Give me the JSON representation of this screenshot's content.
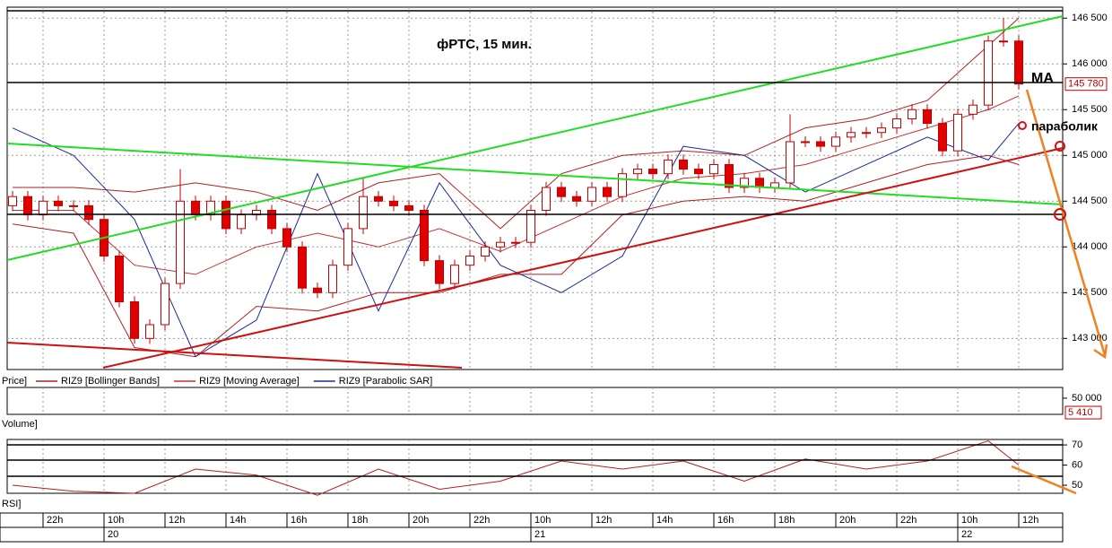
{
  "chart_data": [
    {
      "type": "candlestick",
      "title": "фРТС,  15 мин.",
      "panel_label": "Price]",
      "categories": [
        null,
        null,
        "22h",
        null,
        null,
        null,
        "10h",
        null,
        null,
        null,
        "12h",
        null,
        null,
        null,
        "14h",
        null,
        null,
        null,
        "16h",
        null,
        null,
        null,
        "18h",
        null,
        null,
        null,
        "20h",
        null,
        null,
        null,
        "22h",
        null,
        null,
        null,
        "10h",
        null,
        null,
        null,
        "12h",
        null,
        null,
        null,
        "14h",
        null,
        null,
        null,
        "16h",
        null,
        null,
        null,
        "18h",
        null,
        null,
        null,
        "20h",
        null,
        null,
        null,
        "22h",
        null,
        null,
        null,
        "10h",
        null,
        null,
        null,
        "12h"
      ],
      "days": [
        null,
        null,
        null,
        null,
        null,
        null,
        "20",
        null,
        null,
        null,
        null,
        null,
        null,
        null,
        null,
        null,
        null,
        null,
        null,
        null,
        null,
        null,
        null,
        null,
        null,
        null,
        null,
        null,
        null,
        null,
        null,
        null,
        null,
        null,
        "21",
        null,
        null,
        null,
        null,
        null,
        null,
        null,
        null,
        null,
        null,
        null,
        null,
        null,
        null,
        null,
        null,
        null,
        null,
        null,
        null,
        null,
        null,
        null,
        null,
        null,
        null,
        null,
        "22",
        null,
        null,
        null,
        null
      ],
      "open": [
        144450,
        144550,
        144350,
        144500,
        144450,
        144450,
        144300,
        143900,
        143400,
        143000,
        143150,
        143600,
        144500,
        144350,
        144500,
        144200,
        144350,
        144400,
        144200,
        144000,
        143550,
        143500,
        143800,
        144200,
        144550,
        144500,
        144450,
        144400,
        143850,
        143600,
        143800,
        143900,
        144000,
        144050,
        144050,
        144400,
        144650,
        144550,
        144500,
        144650,
        144550,
        144800,
        144850,
        144800,
        144950,
        144850,
        144800,
        144900,
        144650,
        144750,
        144650,
        144700,
        145150,
        145150,
        145100,
        145200,
        145250,
        145250,
        145300,
        145400,
        145500,
        145350,
        145050,
        145450,
        145550,
        146250,
        146250
      ],
      "high": [
        144610,
        144610,
        144560,
        144560,
        144510,
        144510,
        144360,
        143960,
        143460,
        143210,
        143660,
        144850,
        144560,
        144560,
        144560,
        144410,
        144460,
        144460,
        144260,
        144060,
        143610,
        143860,
        144260,
        144750,
        144610,
        144560,
        144510,
        144460,
        143910,
        143860,
        143960,
        144060,
        144110,
        144110,
        144460,
        144710,
        144710,
        144610,
        144710,
        144710,
        144860,
        144910,
        144910,
        145010,
        145010,
        144910,
        144960,
        144960,
        144810,
        144810,
        144760,
        145450,
        145210,
        145210,
        145260,
        145310,
        145310,
        145360,
        145460,
        145560,
        145560,
        145410,
        145510,
        145610,
        146310,
        146500,
        146310
      ],
      "low": [
        144390,
        144290,
        144290,
        144390,
        144390,
        144240,
        143840,
        143340,
        142940,
        142940,
        143090,
        143540,
        144290,
        144290,
        144140,
        144140,
        144290,
        144140,
        143940,
        143490,
        143440,
        143440,
        143740,
        144140,
        144440,
        144390,
        144340,
        143790,
        143540,
        143540,
        143740,
        143840,
        143940,
        143990,
        143990,
        144340,
        144490,
        144440,
        144440,
        144490,
        144490,
        144740,
        144740,
        144740,
        144790,
        144740,
        144740,
        144590,
        144590,
        144590,
        144590,
        144640,
        145090,
        145040,
        145040,
        145140,
        145190,
        145190,
        145240,
        145340,
        145290,
        144990,
        144990,
        145390,
        145490,
        146190,
        145720
      ],
      "close": [
        144550,
        144350,
        144500,
        144450,
        144450,
        144300,
        143900,
        143400,
        143000,
        143150,
        143600,
        144500,
        144350,
        144500,
        144200,
        144350,
        144400,
        144200,
        144000,
        143550,
        143500,
        143800,
        144200,
        144550,
        144500,
        144450,
        144400,
        143850,
        143600,
        143800,
        143900,
        144000,
        144050,
        144050,
        144400,
        144650,
        144550,
        144500,
        144650,
        144550,
        144800,
        144850,
        144800,
        144950,
        144850,
        144800,
        144900,
        144650,
        144750,
        144650,
        144700,
        145150,
        145150,
        145100,
        145200,
        145250,
        145250,
        145300,
        145400,
        145500,
        145350,
        145050,
        145450,
        145550,
        146250,
        146250,
        145780
      ],
      "up_color": "#ffffff",
      "down_color": "#e00000",
      "edge_color": "#c00000",
      "overlays": [
        {
          "name": "RIZ9 [Bollinger Bands]",
          "color": "#b02020",
          "x": [
            0,
            4,
            8,
            12,
            16,
            20,
            24,
            28,
            32,
            36,
            40,
            44,
            48,
            52,
            56,
            60,
            64,
            66
          ],
          "values": [
            144650,
            144650,
            144600,
            144700,
            144600,
            144400,
            144700,
            144800,
            144200,
            144800,
            145000,
            145050,
            145000,
            145300,
            145400,
            145600,
            146200,
            146500
          ]
        },
        {
          "name": "RIZ9 [Bollinger Bands]",
          "color": "#b02020",
          "x": [
            0,
            4,
            8,
            12,
            16,
            20,
            24,
            28,
            32,
            36,
            40,
            44,
            48,
            52,
            56,
            60,
            64,
            66
          ],
          "values": [
            144250,
            144150,
            142900,
            142800,
            143350,
            143300,
            143500,
            143500,
            143700,
            143700,
            144350,
            144500,
            144550,
            144500,
            144700,
            144900,
            145000,
            144900
          ]
        },
        {
          "name": "RIZ9 [Moving Average]",
          "color": "#c03030",
          "x": [
            0,
            4,
            8,
            12,
            16,
            20,
            24,
            28,
            32,
            36,
            40,
            44,
            48,
            52,
            56,
            60,
            64,
            66
          ],
          "values": [
            144400,
            144400,
            143800,
            143700,
            144000,
            144150,
            144000,
            144200,
            143950,
            144250,
            144550,
            144750,
            144800,
            144900,
            145100,
            145300,
            145500,
            145650
          ]
        },
        {
          "name": "RIZ9 [Parabolic SAR]",
          "color": "#1a2a9a",
          "x": [
            0,
            4,
            8,
            12,
            16,
            20,
            24,
            28,
            32,
            36,
            40,
            44,
            48,
            52,
            56,
            60,
            64,
            66
          ],
          "values": [
            145300,
            145000,
            144300,
            142800,
            143200,
            144800,
            143300,
            144700,
            143800,
            143500,
            143900,
            145100,
            145000,
            144600,
            144900,
            145200,
            144950,
            145350
          ]
        }
      ],
      "annotations": [
        "MA",
        "параболик"
      ],
      "last_price": {
        "value": 145780,
        "label": "145 780"
      },
      "ylim": [
        142660,
        146620
      ],
      "yticks": [
        {
          "value": 143000,
          "label": "143 000"
        },
        {
          "value": 143500,
          "label": "143 500"
        },
        {
          "value": 144000,
          "label": "144 000"
        },
        {
          "value": 144500,
          "label": "144 500"
        },
        {
          "value": 145000,
          "label": "145 000"
        },
        {
          "value": 145500,
          "label": "145 500"
        },
        {
          "value": 146000,
          "label": "146 000"
        },
        {
          "value": 146500,
          "label": "146 500"
        }
      ],
      "grid": true
    },
    {
      "type": "bar",
      "panel_label": "Volume]",
      "ylim": [
        0,
        83000
      ],
      "yticks": [
        {
          "value": 50000,
          "label": "50 000"
        }
      ],
      "last_value": {
        "value": 5410,
        "label": "5 410"
      }
    },
    {
      "type": "line",
      "panel_label": "RSI]",
      "color": "#b02020",
      "x": [
        0,
        4,
        8,
        12,
        16,
        20,
        24,
        28,
        32,
        36,
        40,
        44,
        48,
        52,
        56,
        60,
        64,
        66
      ],
      "values": [
        50,
        47,
        46,
        58,
        55,
        45,
        58,
        48,
        52,
        62,
        58,
        62,
        52,
        63,
        58,
        62,
        72,
        60
      ],
      "ylim": [
        46,
        72.7
      ],
      "yticks": [
        50,
        60,
        70
      ]
    }
  ]
}
